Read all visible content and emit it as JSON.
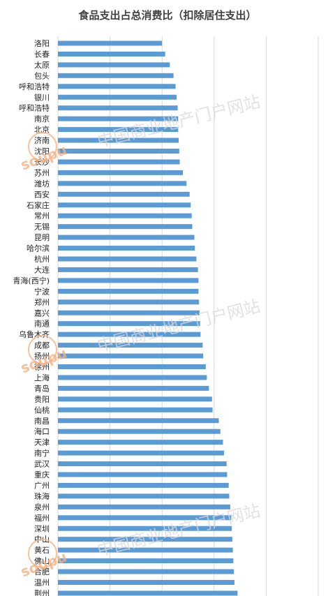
{
  "chart_data": {
    "type": "bar",
    "orientation": "horizontal",
    "title": "食品支出占总消费比（扣除居住支出）",
    "categories": [
      "洛阳",
      "长春",
      "太原",
      "包头",
      "呼和浩特",
      "银川",
      "呼和浩特",
      "南京",
      "北京",
      "济南",
      "沈阳",
      "长沙",
      "苏州",
      "潍坊",
      "西安",
      "石家庄",
      "常州",
      "无锡",
      "昆明",
      "哈尔滨",
      "杭州",
      "大连",
      "青海(西宁)",
      "宁波",
      "郑州",
      "嘉兴",
      "南通",
      "乌鲁木齐",
      "成都",
      "扬州",
      "徐州",
      "上海",
      "青岛",
      "贵阳",
      "仙桃",
      "南昌",
      "海口",
      "天津",
      "南宁",
      "武汉",
      "重庆",
      "广州",
      "珠海",
      "泉州",
      "福州",
      "深圳",
      "中山",
      "黄石",
      "佛山",
      "合肥",
      "温州",
      "荆州"
    ],
    "values": [
      0.3,
      0.306,
      0.315,
      0.322,
      0.326,
      0.328,
      0.33,
      0.331,
      0.331,
      0.332,
      0.333,
      0.334,
      0.34,
      0.347,
      0.353,
      0.355,
      0.357,
      0.358,
      0.362,
      0.363,
      0.366,
      0.369,
      0.37,
      0.37,
      0.371,
      0.372,
      0.373,
      0.374,
      0.378,
      0.379,
      0.384,
      0.386,
      0.39,
      0.396,
      0.397,
      0.409,
      0.412,
      0.417,
      0.419,
      0.424,
      0.425,
      0.428,
      0.429,
      0.431,
      0.433,
      0.434,
      0.435,
      0.436,
      0.437,
      0.438,
      0.439,
      0.445
    ],
    "xlim": [
      0.1,
      0.6
    ],
    "grid": true,
    "bar_color": "#5b9bd5"
  },
  "watermark": {
    "text": "中国商业地产门户网站",
    "seal_text": "soupu",
    "seal_color": "#f4b183"
  }
}
